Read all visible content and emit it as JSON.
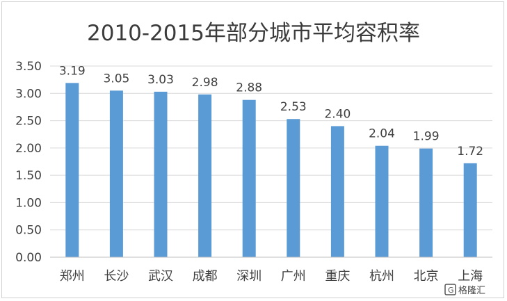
{
  "chart_data": {
    "type": "bar",
    "title": "2010-2015年部分城市平均容积率",
    "categories": [
      "郑州",
      "长沙",
      "武汉",
      "成都",
      "深圳",
      "广州",
      "重庆",
      "杭州",
      "北京",
      "上海"
    ],
    "values": [
      3.19,
      3.05,
      3.03,
      2.98,
      2.88,
      2.53,
      2.4,
      2.04,
      1.99,
      1.72
    ],
    "data_labels": [
      "3.19",
      "3.05",
      "3.03",
      "2.98",
      "2.88",
      "2.53",
      "2.40",
      "2.04",
      "1.99",
      "1.72"
    ],
    "ylim": [
      0,
      3.5
    ],
    "yticks": [
      0,
      0.5,
      1.0,
      1.5,
      2.0,
      2.5,
      3.0,
      3.5
    ],
    "ytick_labels": [
      "0.00",
      "0.50",
      "1.00",
      "1.50",
      "2.00",
      "2.50",
      "3.00",
      "3.50"
    ],
    "xlabel": "",
    "ylabel": "",
    "bar_color": "#5b9bd5",
    "grid": true,
    "grid_color": "#d9d9d9",
    "legend": false
  },
  "watermark": {
    "text": "格隆汇",
    "icon": "gelonghui-logo-icon"
  }
}
